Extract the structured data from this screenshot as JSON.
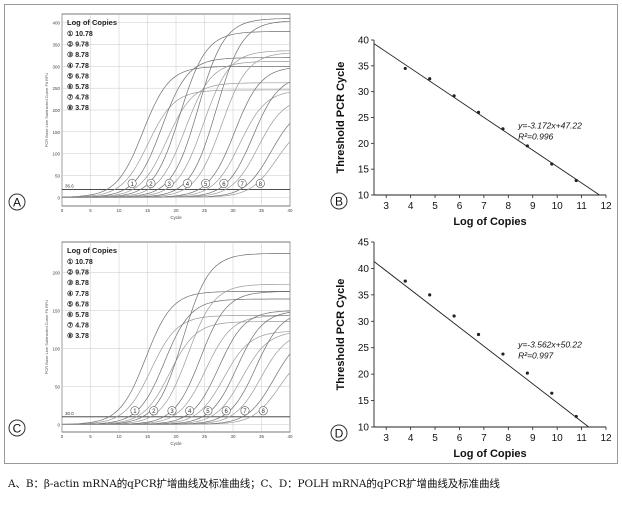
{
  "caption": "A、B：β-actin mRNA的qPCR扩增曲线及标准曲线；C、D：POLH mRNA的qPCR扩增曲线及标准曲线",
  "panels": [
    {
      "letter": "A",
      "legend_title": "Log of Copies",
      "markers": [
        "①",
        "②",
        "③",
        "④",
        "⑤",
        "⑥",
        "⑦",
        "⑧"
      ],
      "legend": [
        "① 10.78",
        "② 9.78",
        "③ 8.78",
        "④ 7.78",
        "⑤ 6.78",
        "⑥ 5.78",
        "⑦ 4.78",
        "⑧ 3.78"
      ],
      "y_ticks": [
        "400",
        "350",
        "300",
        "250",
        "200",
        "150",
        "100",
        "50",
        "0"
      ],
      "x_ticks": [
        "0",
        "5",
        "10",
        "15",
        "20",
        "25",
        "30",
        "35",
        "40"
      ],
      "xlabel": "Cycle",
      "ylabel": "PCR Base Line Subtracted Curve Fit RFU",
      "threshold_label": "36.6"
    },
    {
      "letter": "C",
      "legend_title": "Log of Copies",
      "markers": [
        "①",
        "②",
        "③",
        "④",
        "⑤",
        "⑥",
        "⑦",
        "⑧"
      ],
      "legend": [
        "① 10.78",
        "② 9.78",
        "③ 8.78",
        "④ 7.78",
        "⑤ 6.78",
        "⑥ 5.78",
        "⑦ 4.78",
        "⑧ 3.78"
      ],
      "y_ticks": [
        "200",
        "150",
        "100",
        "50",
        "0"
      ],
      "x_ticks": [
        "0",
        "5",
        "10",
        "15",
        "20",
        "25",
        "30",
        "35",
        "40"
      ],
      "xlabel": "Cycle",
      "ylabel": "PCR Base Line Subtracted Curve Fit RFU",
      "threshold_label": "30.0"
    },
    {
      "letter": "B"
    },
    {
      "letter": "D"
    }
  ],
  "colors": {
    "curve": "#9a9a9a",
    "curve_dark": "#6f6f6f",
    "axis": "#555555",
    "grid": "#c8c8c8"
  },
  "chart_data": [
    {
      "type": "line",
      "title": "",
      "xlabel": "Cycle",
      "ylabel": "PCR Base Line Subtracted Curve Fit RFU",
      "xlim": [
        0,
        40
      ],
      "ylim": [
        -20,
        420
      ],
      "series": [
        {
          "name": "10.78",
          "midpoint": 14.5,
          "plateau": 300
        },
        {
          "name": "9.78",
          "midpoint": 17.8,
          "plateau": 320
        },
        {
          "name": "8.78",
          "midpoint": 21.0,
          "plateau": 380
        },
        {
          "name": "7.78",
          "midpoint": 24.2,
          "plateau": 410
        },
        {
          "name": "6.78",
          "midpoint": 27.4,
          "plateau": 405
        },
        {
          "name": "5.78",
          "midpoint": 30.6,
          "plateau": 300
        },
        {
          "name": "4.78",
          "midpoint": 33.8,
          "plateau": 280
        },
        {
          "name": "3.78",
          "midpoint": 37.0,
          "plateau": 210
        }
      ]
    },
    {
      "type": "scatter",
      "xlabel": "Log of Copies",
      "ylabel": "Threshold PCR Cycle",
      "equation": "y=-3.172x+47.22",
      "r2_label": "R²=0.996",
      "slope": -3.172,
      "intercept": 47.22,
      "xlim": [
        2.5,
        12
      ],
      "ylim": [
        10,
        40
      ],
      "x_ticks": [
        3,
        4,
        5,
        6,
        7,
        8,
        9,
        10,
        11,
        12
      ],
      "y_ticks": [
        10,
        15,
        20,
        25,
        30,
        35,
        40
      ],
      "x": [
        3.78,
        4.78,
        5.78,
        6.78,
        7.78,
        8.78,
        9.78,
        10.78
      ],
      "y": [
        34.5,
        32.5,
        29.2,
        26.0,
        22.8,
        19.5,
        16.0,
        12.8
      ]
    },
    {
      "type": "line",
      "title": "",
      "xlabel": "Cycle",
      "ylabel": "PCR Base Line Subtracted Curve Fit RFU",
      "xlim": [
        0,
        40
      ],
      "ylim": [
        -10,
        240
      ],
      "series": [
        {
          "name": "10.78",
          "midpoint": 15.0,
          "plateau": 175
        },
        {
          "name": "9.78",
          "midpoint": 18.3,
          "plateau": 165
        },
        {
          "name": "8.78",
          "midpoint": 21.5,
          "plateau": 225
        },
        {
          "name": "7.78",
          "midpoint": 24.6,
          "plateau": 175
        },
        {
          "name": "6.78",
          "midpoint": 27.8,
          "plateau": 150
        },
        {
          "name": "5.78",
          "midpoint": 31.0,
          "plateau": 150
        },
        {
          "name": "4.78",
          "midpoint": 34.3,
          "plateau": 150
        },
        {
          "name": "3.78",
          "midpoint": 37.5,
          "plateau": 120
        }
      ]
    },
    {
      "type": "scatter",
      "xlabel": "Log of Copies",
      "ylabel": "Threshold PCR Cycle",
      "equation": "y=-3.562x+50.22",
      "r2_label": "R²=0.997",
      "slope": -3.562,
      "intercept": 50.22,
      "xlim": [
        2.5,
        12
      ],
      "ylim": [
        10,
        45
      ],
      "x_ticks": [
        3,
        4,
        5,
        6,
        7,
        8,
        9,
        10,
        11,
        12
      ],
      "y_ticks": [
        10,
        15,
        20,
        25,
        30,
        35,
        40,
        45
      ],
      "x": [
        3.78,
        4.78,
        5.78,
        6.78,
        7.78,
        8.78,
        9.78,
        10.78
      ],
      "y": [
        37.6,
        35.0,
        31.0,
        27.5,
        23.8,
        20.2,
        16.4,
        12.0
      ]
    }
  ]
}
